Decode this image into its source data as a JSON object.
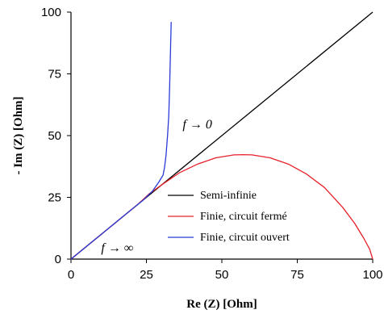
{
  "chart_data": {
    "type": "line",
    "xlabel": "Re (Z) [Ohm]",
    "ylabel": "- Im (Z) [Ohm]",
    "xlim": [
      0,
      100
    ],
    "ylim": [
      0,
      100
    ],
    "xticks": [
      0,
      25,
      50,
      75,
      100
    ],
    "yticks": [
      0,
      25,
      50,
      75,
      100
    ],
    "grid": false,
    "legend_position": "lower-right",
    "annotations": [
      {
        "text": "f → 0",
        "x": 37,
        "y": 53
      },
      {
        "text": "f → ∞",
        "x": 10,
        "y": 3
      }
    ],
    "series": [
      {
        "name": "Semi-infinie",
        "color": "#000000",
        "x": [
          0,
          100
        ],
        "y": [
          0,
          100
        ]
      },
      {
        "name": "Finie, circuit fermé",
        "color": "#e8202a",
        "x": [
          0,
          3,
          6,
          10,
          14,
          18,
          22,
          26,
          30,
          36,
          42,
          48,
          54,
          57,
          60,
          66,
          72,
          78,
          84,
          90,
          94,
          97,
          99,
          100
        ],
        "y": [
          0,
          3,
          6,
          10,
          14,
          18,
          22,
          26.5,
          30,
          35,
          38.5,
          41,
          42.2,
          42.3,
          42.2,
          41,
          38.5,
          34.5,
          29,
          21,
          14.5,
          8.5,
          4,
          0
        ]
      },
      {
        "name": "Finie, circuit ouvert",
        "color": "#2b3ad8",
        "x": [
          0,
          4,
          8,
          12,
          16,
          20,
          24,
          27,
          29,
          30.5,
          31,
          31.5,
          32,
          32.4,
          32.7,
          33,
          33.2
        ],
        "y": [
          0,
          4,
          8,
          12,
          16,
          20,
          24,
          27.5,
          31,
          34,
          37,
          42,
          50,
          58,
          70,
          85,
          96
        ]
      }
    ]
  }
}
